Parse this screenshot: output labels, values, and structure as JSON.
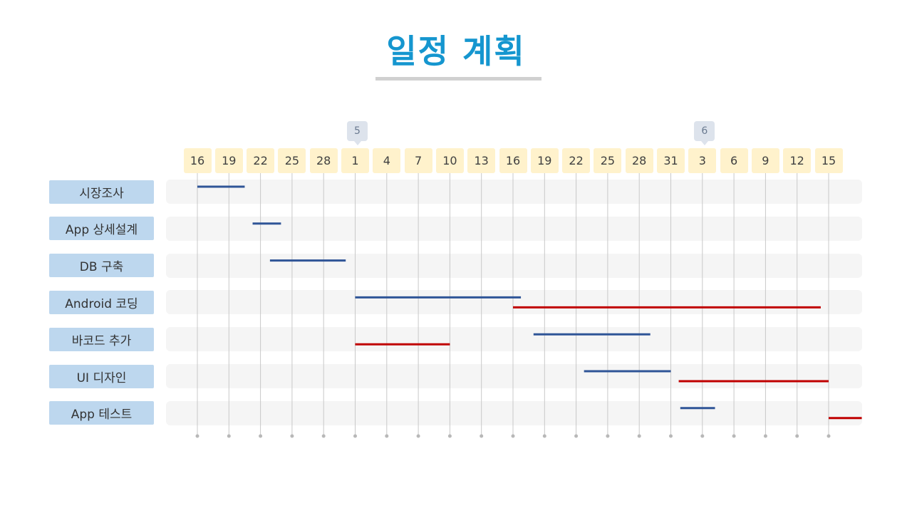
{
  "title": "일정 계획",
  "colors": {
    "title": "#1596cf",
    "plan_bar": "#2f5597",
    "actual_bar": "#c00000",
    "label_bg": "#bdd7ee",
    "date_bg": "#fff2cc",
    "row_bg": "#f5f5f5",
    "gridline": "#c8c8c8"
  },
  "months": [
    {
      "label": "5",
      "at_date_index": 5
    },
    {
      "label": "6",
      "at_date_index": 16
    }
  ],
  "dates": [
    "16",
    "19",
    "22",
    "25",
    "28",
    "1",
    "4",
    "7",
    "10",
    "13",
    "16",
    "19",
    "22",
    "25",
    "28",
    "31",
    "3",
    "6",
    "9",
    "12",
    "15"
  ],
  "tasks": [
    {
      "label": "시장조사"
    },
    {
      "label": "App 상세설계"
    },
    {
      "label": "DB 구축"
    },
    {
      "label": "Android 코딩"
    },
    {
      "label": "바코드 추가"
    },
    {
      "label": "UI 디자인"
    },
    {
      "label": "App 테스트"
    }
  ],
  "chart_data": {
    "type": "gantt",
    "x_ticks": [
      "16",
      "19",
      "22",
      "25",
      "28",
      "1",
      "4",
      "7",
      "10",
      "13",
      "16",
      "19",
      "22",
      "25",
      "28",
      "31",
      "3",
      "6",
      "9",
      "12",
      "15"
    ],
    "bars": [
      {
        "task": "시장조사",
        "color": "#2f5597",
        "start": 0.0,
        "end": 1.5
      },
      {
        "task": "App 상세설계",
        "color": "#2f5597",
        "start": 1.75,
        "end": 2.65
      },
      {
        "task": "DB 구축",
        "color": "#2f5597",
        "start": 2.3,
        "end": 4.7
      },
      {
        "task": "Android 코딩",
        "color": "#2f5597",
        "start": 5.0,
        "end": 10.25
      },
      {
        "task": "Android 코딩",
        "color": "#c00000",
        "start": 10.0,
        "end": 19.75
      },
      {
        "task": "바코드 추가",
        "color": "#2f5597",
        "start": 10.65,
        "end": 14.35
      },
      {
        "task": "바코드 추가",
        "color": "#c00000",
        "start": 5.0,
        "end": 8.0
      },
      {
        "task": "UI 디자인",
        "color": "#2f5597",
        "start": 12.25,
        "end": 15.0
      },
      {
        "task": "UI 디자인",
        "color": "#c00000",
        "start": 15.25,
        "end": 20.0
      },
      {
        "task": "App 테스트",
        "color": "#2f5597",
        "start": 15.3,
        "end": 16.4
      },
      {
        "task": "App 테스트",
        "color": "#c00000",
        "start": 20.0,
        "end": 21.05
      }
    ]
  }
}
